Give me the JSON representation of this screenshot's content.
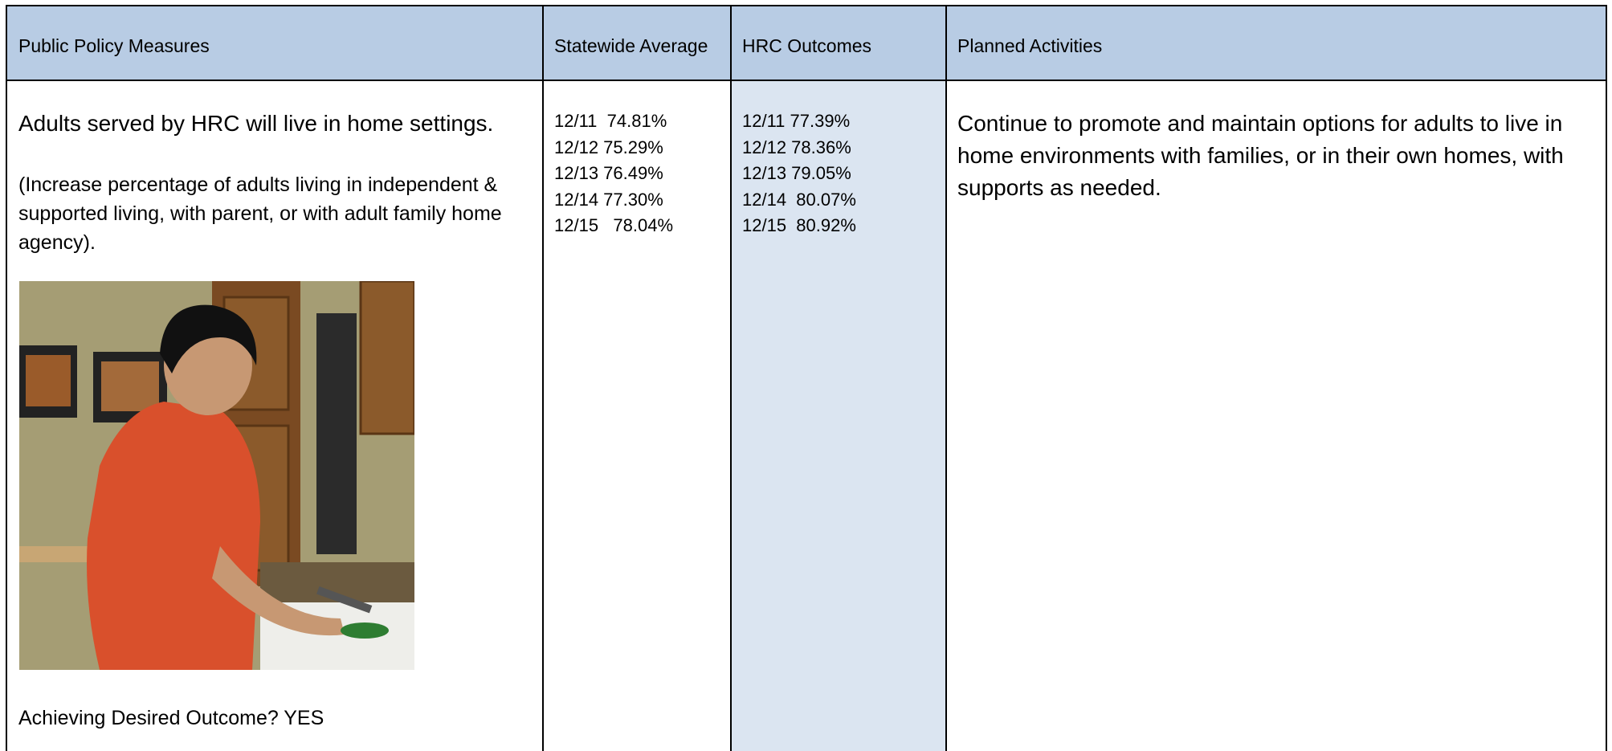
{
  "table": {
    "headers": [
      "Public Policy Measures",
      "Statewide Average",
      "HRC Outcomes",
      "Planned Activities"
    ],
    "measure": {
      "statement": "Adults served by HRC will live in home settings.",
      "note": "(Increase percentage of adults living in independent & supported living, with parent, or with adult family home agency).",
      "outcome": "Achieving Desired Outcome? YES"
    },
    "statewide": [
      "12/11  74.81%",
      "12/12 75.29%",
      "12/13 76.49%",
      "12/14 77.30%",
      "12/15   78.04%"
    ],
    "hrc": [
      "12/11 77.39%",
      "12/12 78.36%",
      "12/13 79.05%",
      "12/14  80.07%",
      "12/15  80.92%"
    ],
    "activities": "Continue to promote and maintain options for adults to live in home environments with families, or in their own homes, with supports as needed."
  }
}
